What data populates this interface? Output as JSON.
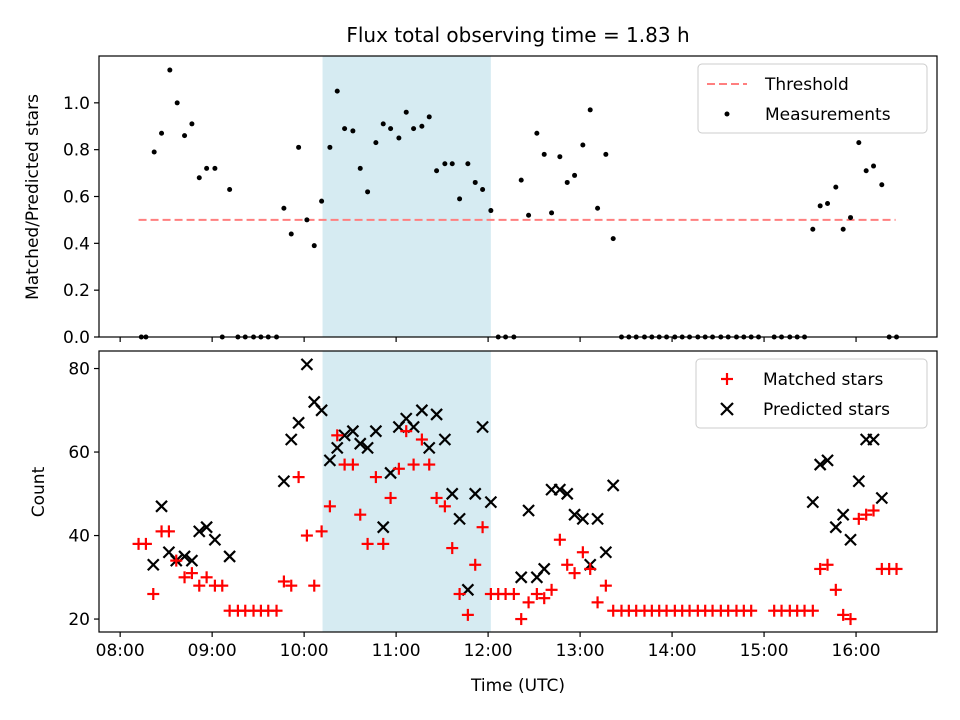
{
  "figure": {
    "title": "Flux total observing time = 1.83 h"
  },
  "colors": {
    "threshold": "#ff7f7f",
    "measurement": "#000000",
    "matched": "#ff0000",
    "predicted": "#000000",
    "shade": "#add8e6"
  },
  "chart_data": [
    {
      "type": "scatter",
      "title": "Flux total observing time = 1.83 h",
      "xlabel": "",
      "ylabel": "Matched/Predicted stars",
      "x_unit": "hours (UTC)",
      "xlim": [
        7.77,
        16.88
      ],
      "ylim": [
        0.0,
        1.2
      ],
      "yticks": [
        0.0,
        0.2,
        0.4,
        0.6,
        0.8,
        1.0
      ],
      "yticklabels": [
        "0.0",
        "0.2",
        "0.4",
        "0.6",
        "0.8",
        "1.0"
      ],
      "shaded_interval": [
        10.2,
        12.03
      ],
      "legend_position": "upper right",
      "legend": [
        "Threshold",
        "Measurements"
      ],
      "threshold": {
        "name": "Threshold",
        "style": "dashed",
        "x": [
          8.2,
          16.43
        ],
        "y": 0.5
      },
      "series": [
        {
          "name": "Measurements",
          "marker": "dot",
          "points": [
            [
              8.23,
              0.0
            ],
            [
              8.28,
              0.0
            ],
            [
              8.37,
              0.79
            ],
            [
              8.45,
              0.87
            ],
            [
              8.54,
              1.14
            ],
            [
              8.62,
              1.0
            ],
            [
              8.7,
              0.86
            ],
            [
              8.78,
              0.91
            ],
            [
              8.86,
              0.68
            ],
            [
              8.94,
              0.72
            ],
            [
              9.03,
              0.72
            ],
            [
              9.11,
              0.0
            ],
            [
              9.19,
              0.63
            ],
            [
              9.28,
              0.0
            ],
            [
              9.36,
              0.0
            ],
            [
              9.45,
              0.0
            ],
            [
              9.53,
              0.0
            ],
            [
              9.61,
              0.0
            ],
            [
              9.7,
              0.0
            ],
            [
              9.78,
              0.55
            ],
            [
              9.86,
              0.44
            ],
            [
              9.94,
              0.81
            ],
            [
              10.03,
              0.5
            ],
            [
              10.11,
              0.39
            ],
            [
              10.19,
              0.58
            ],
            [
              10.28,
              0.81
            ],
            [
              10.36,
              1.05
            ],
            [
              10.44,
              0.89
            ],
            [
              10.53,
              0.88
            ],
            [
              10.61,
              0.72
            ],
            [
              10.69,
              0.62
            ],
            [
              10.78,
              0.83
            ],
            [
              10.86,
              0.91
            ],
            [
              10.94,
              0.89
            ],
            [
              11.03,
              0.85
            ],
            [
              11.11,
              0.96
            ],
            [
              11.19,
              0.89
            ],
            [
              11.28,
              0.9
            ],
            [
              11.36,
              0.94
            ],
            [
              11.44,
              0.71
            ],
            [
              11.53,
              0.74
            ],
            [
              11.61,
              0.74
            ],
            [
              11.69,
              0.59
            ],
            [
              11.78,
              0.74
            ],
            [
              11.86,
              0.66
            ],
            [
              11.94,
              0.63
            ],
            [
              12.03,
              0.54
            ],
            [
              12.11,
              0.0
            ],
            [
              12.19,
              0.0
            ],
            [
              12.28,
              0.0
            ],
            [
              12.36,
              0.67
            ],
            [
              12.44,
              0.52
            ],
            [
              12.53,
              0.87
            ],
            [
              12.61,
              0.78
            ],
            [
              12.69,
              0.53
            ],
            [
              12.78,
              0.77
            ],
            [
              12.86,
              0.66
            ],
            [
              12.94,
              0.69
            ],
            [
              13.03,
              0.82
            ],
            [
              13.11,
              0.97
            ],
            [
              13.19,
              0.55
            ],
            [
              13.28,
              0.78
            ],
            [
              13.36,
              0.42
            ],
            [
              13.45,
              0.0
            ],
            [
              13.53,
              0.0
            ],
            [
              13.61,
              0.0
            ],
            [
              13.7,
              0.0
            ],
            [
              13.78,
              0.0
            ],
            [
              13.86,
              0.0
            ],
            [
              13.94,
              0.0
            ],
            [
              14.03,
              0.0
            ],
            [
              14.11,
              0.0
            ],
            [
              14.19,
              0.0
            ],
            [
              14.28,
              0.0
            ],
            [
              14.36,
              0.0
            ],
            [
              14.44,
              0.0
            ],
            [
              14.53,
              0.0
            ],
            [
              14.61,
              0.0
            ],
            [
              14.7,
              0.0
            ],
            [
              14.78,
              0.0
            ],
            [
              14.86,
              0.0
            ],
            [
              14.94,
              0.0
            ],
            [
              15.11,
              0.0
            ],
            [
              15.19,
              0.0
            ],
            [
              15.28,
              0.0
            ],
            [
              15.36,
              0.0
            ],
            [
              15.44,
              0.0
            ],
            [
              15.53,
              0.46
            ],
            [
              15.61,
              0.56
            ],
            [
              15.69,
              0.57
            ],
            [
              15.78,
              0.64
            ],
            [
              15.86,
              0.46
            ],
            [
              15.94,
              0.51
            ],
            [
              16.03,
              0.83
            ],
            [
              16.11,
              0.71
            ],
            [
              16.19,
              0.73
            ],
            [
              16.28,
              0.65
            ],
            [
              16.36,
              0.0
            ],
            [
              16.44,
              0.0
            ]
          ]
        }
      ]
    },
    {
      "type": "scatter",
      "xlabel": "Time (UTC)",
      "ylabel": "Count",
      "x_unit": "hours (UTC)",
      "xlim": [
        7.77,
        16.88
      ],
      "ylim": [
        16.9,
        84.2
      ],
      "xticks": [
        8,
        9,
        10,
        11,
        12,
        13,
        14,
        15,
        16
      ],
      "xticklabels": [
        "08:00",
        "09:00",
        "10:00",
        "11:00",
        "12:00",
        "13:00",
        "14:00",
        "15:00",
        "16:00"
      ],
      "yticks": [
        20,
        40,
        60,
        80
      ],
      "yticklabels": [
        "20",
        "40",
        "60",
        "80"
      ],
      "shaded_interval": [
        10.2,
        12.03
      ],
      "legend_position": "upper right",
      "legend": [
        "Matched stars",
        "Predicted stars"
      ],
      "series": [
        {
          "name": "Matched stars",
          "marker": "plus",
          "points": [
            [
              8.2,
              38
            ],
            [
              8.28,
              38
            ],
            [
              8.36,
              26
            ],
            [
              8.45,
              41
            ],
            [
              8.53,
              41
            ],
            [
              8.61,
              34
            ],
            [
              8.7,
              30
            ],
            [
              8.78,
              31
            ],
            [
              8.86,
              28
            ],
            [
              8.94,
              30
            ],
            [
              9.03,
              28
            ],
            [
              9.11,
              28
            ],
            [
              9.19,
              22
            ],
            [
              9.28,
              22
            ],
            [
              9.36,
              22
            ],
            [
              9.45,
              22
            ],
            [
              9.53,
              22
            ],
            [
              9.61,
              22
            ],
            [
              9.7,
              22
            ],
            [
              9.78,
              29
            ],
            [
              9.86,
              28
            ],
            [
              9.94,
              54
            ],
            [
              10.03,
              40
            ],
            [
              10.11,
              28
            ],
            [
              10.19,
              41
            ],
            [
              10.28,
              47
            ],
            [
              10.36,
              64
            ],
            [
              10.44,
              57
            ],
            [
              10.53,
              57
            ],
            [
              10.61,
              45
            ],
            [
              10.69,
              38
            ],
            [
              10.78,
              54
            ],
            [
              10.86,
              38
            ],
            [
              10.94,
              49
            ],
            [
              11.03,
              56
            ],
            [
              11.11,
              65
            ],
            [
              11.19,
              57
            ],
            [
              11.28,
              63
            ],
            [
              11.36,
              57
            ],
            [
              11.44,
              49
            ],
            [
              11.53,
              47
            ],
            [
              11.61,
              37
            ],
            [
              11.69,
              26
            ],
            [
              11.78,
              21
            ],
            [
              11.86,
              33
            ],
            [
              11.94,
              42
            ],
            [
              12.03,
              26
            ],
            [
              12.11,
              26
            ],
            [
              12.19,
              26
            ],
            [
              12.28,
              26
            ],
            [
              12.36,
              20
            ],
            [
              12.44,
              24
            ],
            [
              12.53,
              26
            ],
            [
              12.61,
              25
            ],
            [
              12.69,
              27
            ],
            [
              12.78,
              39
            ],
            [
              12.86,
              33
            ],
            [
              12.94,
              31
            ],
            [
              13.03,
              36
            ],
            [
              13.11,
              32
            ],
            [
              13.19,
              24
            ],
            [
              13.28,
              28
            ],
            [
              13.36,
              22
            ],
            [
              13.45,
              22
            ],
            [
              13.53,
              22
            ],
            [
              13.61,
              22
            ],
            [
              13.7,
              22
            ],
            [
              13.78,
              22
            ],
            [
              13.86,
              22
            ],
            [
              13.94,
              22
            ],
            [
              14.03,
              22
            ],
            [
              14.11,
              22
            ],
            [
              14.19,
              22
            ],
            [
              14.28,
              22
            ],
            [
              14.36,
              22
            ],
            [
              14.44,
              22
            ],
            [
              14.53,
              22
            ],
            [
              14.61,
              22
            ],
            [
              14.7,
              22
            ],
            [
              14.78,
              22
            ],
            [
              14.86,
              22
            ],
            [
              15.11,
              22
            ],
            [
              15.19,
              22
            ],
            [
              15.28,
              22
            ],
            [
              15.36,
              22
            ],
            [
              15.44,
              22
            ],
            [
              15.53,
              22
            ],
            [
              15.61,
              32
            ],
            [
              15.69,
              33
            ],
            [
              15.78,
              27
            ],
            [
              15.86,
              21
            ],
            [
              15.94,
              20
            ],
            [
              16.03,
              44
            ],
            [
              16.11,
              45
            ],
            [
              16.19,
              46
            ],
            [
              16.28,
              32
            ],
            [
              16.36,
              32
            ],
            [
              16.44,
              32
            ]
          ]
        },
        {
          "name": "Predicted stars",
          "marker": "x",
          "points": [
            [
              8.36,
              33
            ],
            [
              8.45,
              47
            ],
            [
              8.53,
              36
            ],
            [
              8.61,
              34
            ],
            [
              8.7,
              35
            ],
            [
              8.78,
              34
            ],
            [
              8.86,
              41
            ],
            [
              8.94,
              42
            ],
            [
              9.03,
              39
            ],
            [
              9.19,
              35
            ],
            [
              9.78,
              53
            ],
            [
              9.86,
              63
            ],
            [
              9.94,
              67
            ],
            [
              10.03,
              81
            ],
            [
              10.11,
              72
            ],
            [
              10.19,
              70
            ],
            [
              10.28,
              58
            ],
            [
              10.36,
              61
            ],
            [
              10.44,
              64
            ],
            [
              10.53,
              65
            ],
            [
              10.61,
              62
            ],
            [
              10.69,
              61
            ],
            [
              10.78,
              65
            ],
            [
              10.86,
              42
            ],
            [
              10.94,
              55
            ],
            [
              11.03,
              66
            ],
            [
              11.11,
              68
            ],
            [
              11.19,
              66
            ],
            [
              11.28,
              70
            ],
            [
              11.36,
              61
            ],
            [
              11.44,
              69
            ],
            [
              11.53,
              63
            ],
            [
              11.61,
              50
            ],
            [
              11.69,
              44
            ],
            [
              11.78,
              27
            ],
            [
              11.86,
              50
            ],
            [
              11.94,
              66
            ],
            [
              12.03,
              48
            ],
            [
              12.36,
              30
            ],
            [
              12.44,
              46
            ],
            [
              12.53,
              30
            ],
            [
              12.61,
              32
            ],
            [
              12.69,
              51
            ],
            [
              12.78,
              51
            ],
            [
              12.86,
              50
            ],
            [
              12.94,
              45
            ],
            [
              13.03,
              44
            ],
            [
              13.11,
              33
            ],
            [
              13.19,
              44
            ],
            [
              13.28,
              36
            ],
            [
              13.36,
              52
            ],
            [
              15.53,
              48
            ],
            [
              15.61,
              57
            ],
            [
              15.69,
              58
            ],
            [
              15.78,
              42
            ],
            [
              15.86,
              45
            ],
            [
              15.94,
              39
            ],
            [
              16.03,
              53
            ],
            [
              16.11,
              63
            ],
            [
              16.19,
              63
            ],
            [
              16.28,
              49
            ]
          ]
        }
      ]
    }
  ]
}
